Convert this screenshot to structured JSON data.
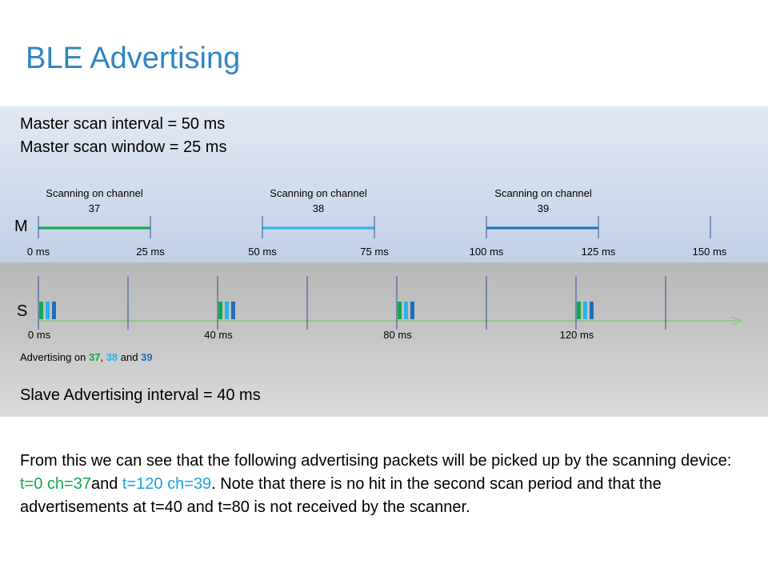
{
  "title": "BLE Advertising",
  "master": {
    "scan_interval_text": "Master scan interval = 50 ms",
    "scan_window_text": "Master scan window = 25 ms",
    "row_label": "M",
    "scans": [
      {
        "label_line1": "Scanning on channel",
        "channel": "37",
        "start_ms": 0,
        "end_ms": 25,
        "color": "#12a84e"
      },
      {
        "label_line1": "Scanning on channel",
        "channel": "38",
        "start_ms": 50,
        "end_ms": 75,
        "color": "#2ab3e8"
      },
      {
        "label_line1": "Scanning on channel",
        "channel": "39",
        "start_ms": 100,
        "end_ms": 125,
        "color": "#1e6fb8"
      }
    ],
    "tick_labels": [
      "0 ms",
      "25 ms",
      "50 ms",
      "75 ms",
      "100 ms",
      "125 ms",
      "150 ms"
    ],
    "tick_values_ms": [
      0,
      25,
      50,
      75,
      100,
      125,
      150
    ]
  },
  "slave": {
    "row_label": "S",
    "advertising_events_ms": [
      0,
      40,
      80,
      120
    ],
    "tick_labels": [
      "0 ms",
      "40 ms",
      "80 ms",
      "120 ms"
    ],
    "divider_ms": [
      0,
      20,
      40,
      60,
      80,
      100,
      120,
      140
    ],
    "channel_colors": [
      "#12a84e",
      "#2ab3e8",
      "#1e6fb8"
    ],
    "axis_color": "#7dc66f",
    "advertising_caption": {
      "prefix": "Advertising on ",
      "ch37": "37",
      "sep1": ", ",
      "ch38": "38",
      "sep2": " and ",
      "ch39": "39"
    },
    "interval_text": "Slave Advertising interval = 40 ms"
  },
  "conclusion": {
    "part1": "From this we can see that the following advertising packets will be picked up by the scanning device: ",
    "hit1": "t=0 ch=37",
    "part2": "and ",
    "hit2": "t=120 ch=39",
    "part3": ". Note that there is no hit in the second scan period and that the advertisements at t=40 and t=80 is not received by the scanner."
  }
}
